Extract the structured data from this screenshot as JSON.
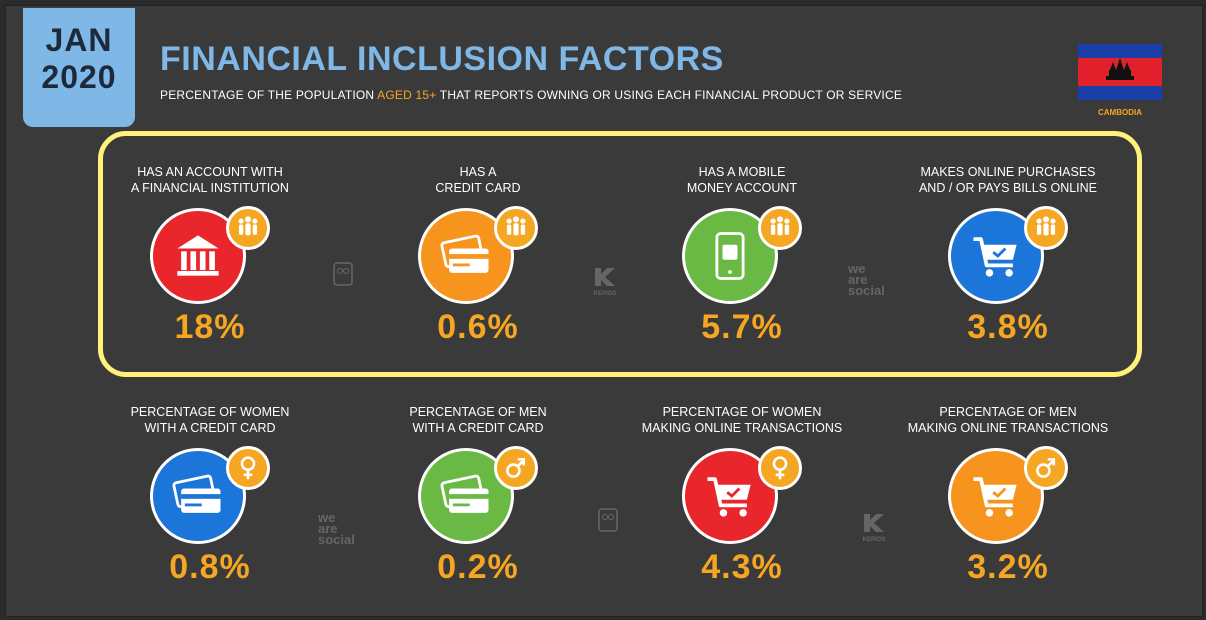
{
  "header": {
    "date_month": "JAN",
    "date_year": "2020",
    "title": "FINANCIAL INCLUSION FACTORS",
    "subtitle_pre": "PERCENTAGE OF THE POPULATION ",
    "subtitle_hl": "AGED 15+",
    "subtitle_post": " THAT REPORTS OWNING OR USING EACH FINANCIAL PRODUCT OR SERVICE",
    "country": "CAMBODIA"
  },
  "colors": {
    "accent_blue": "#7fb7e6",
    "value_orange": "#f5a623",
    "highlight_yellow": "#fff27a",
    "red": "#e8262b",
    "orange": "#f7941d",
    "green": "#6ab945",
    "blue": "#1c75d8"
  },
  "row1": [
    {
      "label": "HAS AN ACCOUNT WITH\nA FINANCIAL INSTITUTION",
      "value": "18%",
      "icon": "bank-icon",
      "color": "red"
    },
    {
      "label": "HAS A\nCREDIT CARD",
      "value": "0.6%",
      "icon": "credit-card-icon",
      "color": "orange"
    },
    {
      "label": "HAS A MOBILE\nMONEY ACCOUNT",
      "value": "5.7%",
      "icon": "mobile-money-icon",
      "color": "green"
    },
    {
      "label": "MAKES ONLINE PURCHASES\nAND / OR PAYS BILLS ONLINE",
      "value": "3.8%",
      "icon": "shopping-cart-icon",
      "color": "blue"
    }
  ],
  "row2": [
    {
      "label": "PERCENTAGE OF WOMEN\nWITH A CREDIT CARD",
      "value": "0.8%",
      "icon": "credit-card-icon",
      "color": "blue"
    },
    {
      "label": "PERCENTAGE OF MEN\nWITH A CREDIT CARD",
      "value": "0.2%",
      "icon": "credit-card-icon",
      "color": "green"
    },
    {
      "label": "PERCENTAGE OF WOMEN\nMAKING ONLINE TRANSACTIONS",
      "value": "4.3%",
      "icon": "shopping-cart-icon",
      "color": "red"
    },
    {
      "label": "PERCENTAGE OF MEN\nMAKING ONLINE TRANSACTIONS",
      "value": "3.2%",
      "icon": "shopping-cart-icon",
      "color": "orange"
    }
  ],
  "watermarks": {
    "social_1": "we",
    "social_2": "are",
    "social_3": "social",
    "kepios": "KEPIOS"
  }
}
